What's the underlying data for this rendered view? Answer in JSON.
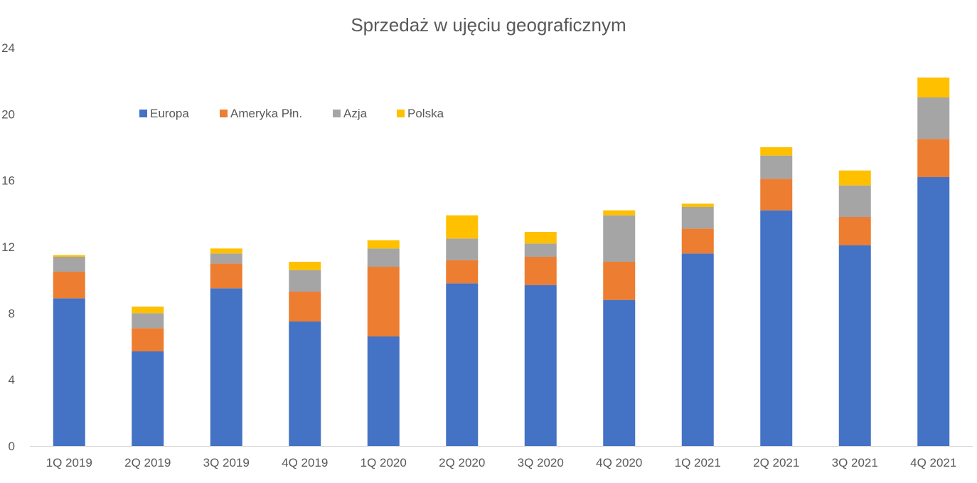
{
  "chart_data": {
    "type": "bar",
    "stacked": true,
    "title": "Sprzedaż w ujęciu geograficznym",
    "xlabel": "",
    "ylabel": "",
    "ylim": [
      0,
      24
    ],
    "yticks": [
      "0",
      "4",
      "8",
      "12",
      "16",
      "20",
      "24"
    ],
    "grid": false,
    "legend": "top-left",
    "categories": [
      "1Q 2019",
      "2Q 2019",
      "3Q 2019",
      "4Q 2019",
      "1Q 2020",
      "2Q 2020",
      "3Q 2020",
      "4Q 2020",
      "1Q 2021",
      "2Q 2021",
      "3Q 2021",
      "4Q 2021"
    ],
    "series": [
      {
        "name": "Europa",
        "color": "#4472C4",
        "values": [
          8.9,
          5.7,
          9.5,
          7.5,
          6.6,
          9.8,
          9.7,
          8.8,
          11.6,
          14.2,
          12.1,
          16.2
        ]
      },
      {
        "name": "Ameryka Płn.",
        "color": "#ED7D31",
        "values": [
          1.6,
          1.4,
          1.5,
          1.8,
          4.2,
          1.4,
          1.7,
          2.3,
          1.5,
          1.9,
          1.7,
          2.3
        ]
      },
      {
        "name": "Azja",
        "color": "#A5A5A5",
        "values": [
          0.9,
          0.9,
          0.6,
          1.3,
          1.1,
          1.3,
          0.8,
          2.8,
          1.3,
          1.4,
          1.9,
          2.5
        ]
      },
      {
        "name": "Polska",
        "color": "#FFC000",
        "values": [
          0.1,
          0.4,
          0.3,
          0.5,
          0.5,
          1.4,
          0.7,
          0.3,
          0.2,
          0.5,
          0.9,
          1.2
        ]
      }
    ]
  }
}
